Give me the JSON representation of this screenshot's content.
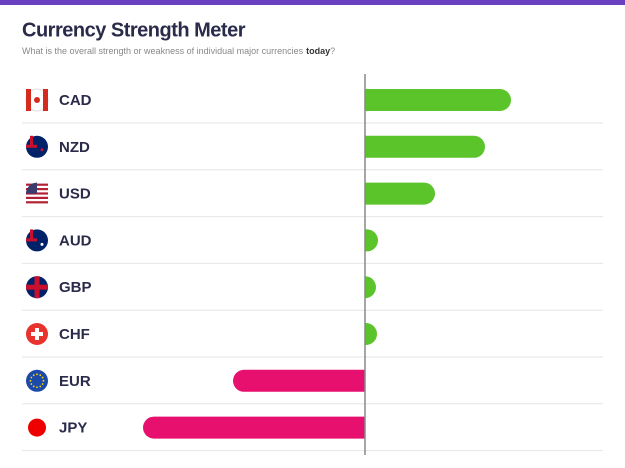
{
  "chart_data": {
    "type": "diverging-bar",
    "title": "Currency Strength Meter",
    "subtitle": {
      "text": "What is the overall strength or weakness of individual major currencies",
      "emphasis": "today",
      "end": "?"
    },
    "categories": [
      "CAD",
      "NZD",
      "USD",
      "AUD",
      "GBP",
      "CHF",
      "EUR",
      "JPY"
    ],
    "values": [
      146,
      120,
      70,
      13,
      11,
      12,
      -132,
      -222
    ],
    "positive_color": "#5ac42a",
    "negative_color": "#e8106e",
    "xlim": [
      -250,
      250
    ]
  }
}
